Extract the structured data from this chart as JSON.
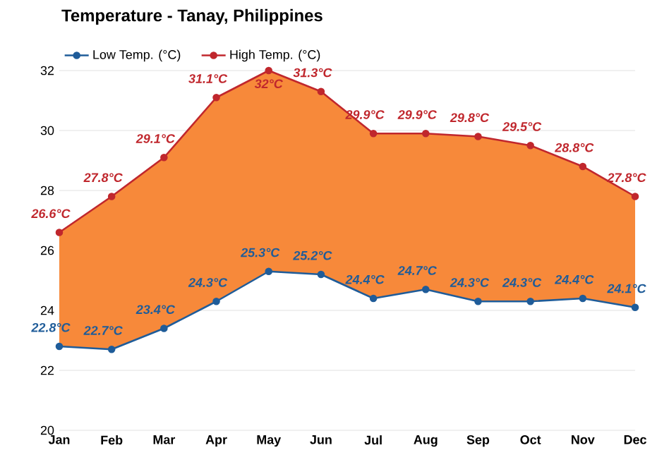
{
  "chart_data": {
    "type": "line",
    "title": "Temperature - Tanay, Philippines",
    "categories": [
      "Jan",
      "Feb",
      "Mar",
      "Apr",
      "May",
      "Jun",
      "Jul",
      "Aug",
      "Sep",
      "Oct",
      "Nov",
      "Dec"
    ],
    "series": [
      {
        "name": "Low Temp. (°C)",
        "color": "#1f5c99",
        "values": [
          22.8,
          22.7,
          23.4,
          24.3,
          25.3,
          25.2,
          24.4,
          24.7,
          24.3,
          24.3,
          24.4,
          24.1
        ],
        "value_labels": [
          "22.8°C",
          "22.7°C",
          "23.4°C",
          "24.3°C",
          "25.3°C",
          "25.2°C",
          "24.4°C",
          "24.7°C",
          "24.3°C",
          "24.3°C",
          "24.4°C",
          "24.1°C"
        ]
      },
      {
        "name": "High Temp. (°C)",
        "type": "area",
        "color": "#c0272d",
        "values": [
          26.6,
          27.8,
          29.1,
          31.1,
          32,
          31.3,
          29.9,
          29.9,
          29.8,
          29.5,
          28.8,
          27.8
        ],
        "value_labels": [
          "26.6°C",
          "27.8°C",
          "29.1°C",
          "31.1°C",
          "32°C",
          "31.3°C",
          "29.9°C",
          "29.9°C",
          "29.8°C",
          "29.5°C",
          "28.8°C",
          "27.8°C"
        ]
      }
    ],
    "ylim": [
      20,
      32
    ],
    "yticks": [
      20,
      22,
      24,
      26,
      28,
      30,
      32
    ],
    "grid": "y",
    "legend": "top left",
    "marker": "circle",
    "line_style": "solid"
  }
}
